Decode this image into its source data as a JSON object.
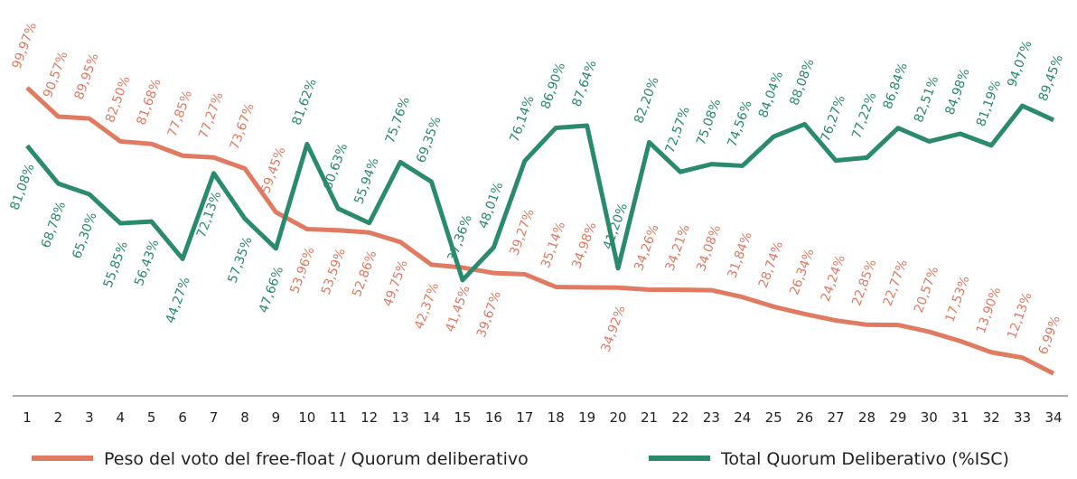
{
  "chart_data": {
    "type": "line",
    "categories": [
      "1",
      "2",
      "3",
      "4",
      "5",
      "6",
      "7",
      "8",
      "9",
      "10",
      "11",
      "12",
      "13",
      "14",
      "15",
      "16",
      "17",
      "18",
      "19",
      "20",
      "21",
      "22",
      "23",
      "24",
      "25",
      "26",
      "27",
      "28",
      "29",
      "30",
      "31",
      "32",
      "33",
      "34"
    ],
    "ylim": [
      0,
      128.5
    ],
    "series": [
      {
        "name": "Peso del voto del free-float / Quorum deliberativo",
        "color": "#e07b62",
        "values": [
          99.97,
          90.57,
          89.95,
          82.5,
          81.68,
          77.85,
          77.27,
          73.67,
          59.45,
          53.96,
          53.59,
          52.86,
          49.75,
          42.37,
          41.45,
          39.67,
          39.27,
          35.14,
          34.98,
          34.92,
          34.26,
          34.21,
          34.08,
          31.84,
          28.74,
          26.34,
          24.24,
          22.85,
          22.77,
          20.57,
          17.53,
          13.9,
          12.13,
          6.99
        ],
        "value_labels": [
          "99,97%",
          "90,57%",
          "89,95%",
          "82,50%",
          "81,68%",
          "77,85%",
          "77,27%",
          "73,67%",
          "59,45%",
          "53,96%",
          "53,59%",
          "52,86%",
          "49,75%",
          "42,37%",
          "41,45%",
          "39,67%",
          "39,27%",
          "35,14%",
          "34,98%",
          "34,92%",
          "34,26%",
          "34,21%",
          "34,08%",
          "31,84%",
          "28,74%",
          "26,34%",
          "24,24%",
          "22,85%",
          "22,77%",
          "20,57%",
          "17,53%",
          "13,90%",
          "12,13%",
          "6,99%"
        ]
      },
      {
        "name": "Total Quorum Deliberativo (%ISC)",
        "color": "#2a8a6e",
        "values": [
          81.08,
          68.78,
          65.3,
          55.85,
          56.43,
          44.27,
          72.13,
          57.35,
          47.66,
          81.62,
          60.63,
          55.94,
          75.76,
          69.35,
          37.36,
          48.01,
          76.14,
          86.9,
          87.64,
          41.2,
          82.2,
          72.57,
          75.08,
          74.56,
          84.04,
          88.08,
          76.27,
          77.22,
          86.84,
          82.51,
          84.98,
          81.19,
          94.07,
          89.45
        ],
        "value_labels": [
          "81,08%",
          "68,78%",
          "65,30%",
          "55,85%",
          "56,43%",
          "44,27%",
          "72,13%",
          "57,35%",
          "47,66%",
          "81,62%",
          "60,63%",
          "55,94%",
          "75,76%",
          "69,35%",
          "37,36%",
          "48,01%",
          "76,14%",
          "86,90%",
          "87,64%",
          "41,20%",
          "82,20%",
          "72,57%",
          "75,08%",
          "74,56%",
          "84,04%",
          "88,08%",
          "76,27%",
          "77,22%",
          "86,84%",
          "82,51%",
          "84,98%",
          "81,19%",
          "94,07%",
          "89,45%"
        ]
      }
    ]
  }
}
